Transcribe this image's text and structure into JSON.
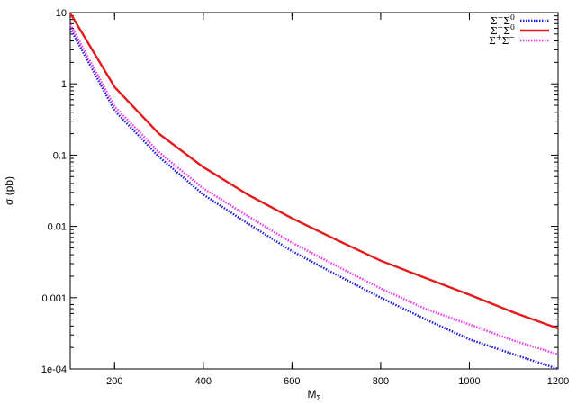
{
  "chart_data": {
    "type": "line",
    "xlabel": "M",
    "xlabel_sub": "Σ",
    "ylabel": "σ (pb)",
    "xlim": [
      100,
      1200
    ],
    "ylim": [
      0.0001,
      10
    ],
    "yscale": "log",
    "grid": false,
    "legend_position": "top-right",
    "x_ticks": [
      200,
      400,
      600,
      800,
      1000,
      1200
    ],
    "x_tick_labels": [
      "200",
      "400",
      "600",
      "800",
      "1000",
      "1200"
    ],
    "y_ticks": [
      0.0001,
      0.001,
      0.01,
      0.1,
      1,
      10
    ],
    "y_tick_labels": [
      "1e-04",
      "0.001",
      "0.01",
      "0.1",
      "1",
      "10"
    ],
    "series": [
      {
        "name": "Σ⁻Σ⁰",
        "legend": {
          "a": "Σ",
          "a_sup": "−",
          "b": "Σ",
          "b_sup": "0"
        },
        "color": "#1f1fdd",
        "style": "dotted",
        "x": [
          100,
          200,
          300,
          400,
          500,
          600,
          700,
          800,
          900,
          1000,
          1100,
          1200
        ],
        "y": [
          6.0,
          0.42,
          0.095,
          0.028,
          0.011,
          0.0045,
          0.0021,
          0.001,
          0.0005,
          0.00026,
          0.00016,
          0.0001
        ]
      },
      {
        "name": "Σ⁺Σ⁰",
        "legend": {
          "a": "Σ",
          "a_sup": "+",
          "b": "Σ",
          "b_sup": "0"
        },
        "color": "#e41a1c",
        "style": "solid",
        "x": [
          100,
          200,
          300,
          400,
          500,
          600,
          700,
          800,
          900,
          1000,
          1100,
          1200
        ],
        "y": [
          9.8,
          0.9,
          0.2,
          0.068,
          0.028,
          0.013,
          0.0065,
          0.0033,
          0.0019,
          0.0011,
          0.00062,
          0.00037
        ]
      },
      {
        "name": "Σ⁺Σ⁻",
        "legend": {
          "a": "Σ",
          "a_sup": "+",
          "b": "Σ",
          "b_sup": "−"
        },
        "color": "#ee3bee",
        "style": "dotted",
        "x": [
          100,
          200,
          300,
          400,
          500,
          600,
          700,
          800,
          900,
          1000,
          1100,
          1200
        ],
        "y": [
          6.8,
          0.48,
          0.11,
          0.034,
          0.014,
          0.0059,
          0.0028,
          0.00135,
          0.0007,
          0.00042,
          0.00025,
          0.00016
        ]
      }
    ]
  }
}
